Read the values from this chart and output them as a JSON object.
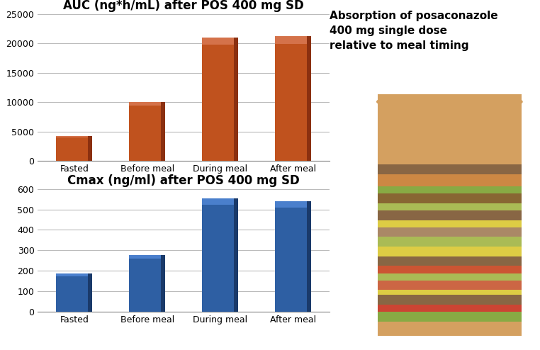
{
  "auc_title": "AUC (ng*h/mL) after POS 400 mg SD",
  "cmax_title": "Cmax (ng/ml) after POS 400 mg SD",
  "categories": [
    "Fasted",
    "Before meal",
    "During meal",
    "After meal"
  ],
  "auc_values": [
    4200,
    10000,
    21000,
    21200
  ],
  "cmax_values": [
    185,
    275,
    555,
    540
  ],
  "auc_color_main": "#C0521E",
  "auc_color_light": "#D4724A",
  "auc_color_dark": "#8B3010",
  "cmax_color_main": "#2E5FA3",
  "cmax_color_light": "#4A7FCC",
  "cmax_color_dark": "#1A3A6A",
  "auc_ylim": [
    0,
    25000
  ],
  "auc_yticks": [
    0,
    5000,
    10000,
    15000,
    20000,
    25000
  ],
  "cmax_ylim": [
    0,
    600
  ],
  "cmax_yticks": [
    0,
    100,
    200,
    300,
    400,
    500,
    600
  ],
  "right_title": "Absorption of posaconazole\n400 mg single dose\nrelative to meal timing",
  "gold_bar_color": "#B8A828",
  "background_color": "#FFFFFF",
  "grid_color": "#BBBBBB",
  "title_fontsize": 12,
  "tick_fontsize": 9
}
